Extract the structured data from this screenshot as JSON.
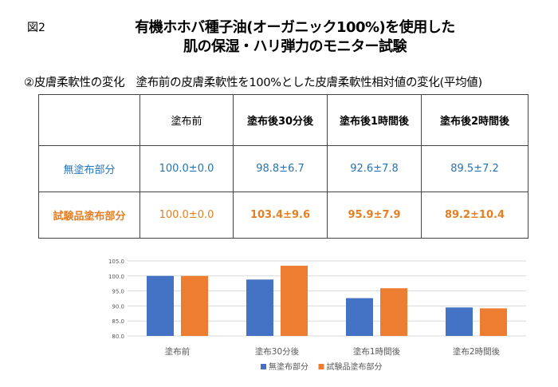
{
  "figure_label": "図2",
  "title_line1": "有機ホホバ種子油(オーガニック100%)を使用した",
  "title_line2": "肌の保湿・ハリ弾力のモニター試験",
  "subtitle": "②皮膚柔軟性の変化　塗布前の皮膚柔軟性を100%とした皮膚柔軟性相対値の変化(平均値)",
  "table": {
    "headers": [
      "",
      "塗布前",
      "塗布後30分後",
      "塗布後1時間後",
      "塗布後2時間後"
    ],
    "rows": [
      {
        "label": "無塗布部分",
        "cells": [
          "100.0±0.0",
          "98.8±6.7",
          "92.6±7.8",
          "89.5±7.2"
        ]
      },
      {
        "label": "試験品塗布部分",
        "cells": [
          "100.0±0.0",
          "103.4±9.6",
          "95.9±7.9",
          "89.2±10.4"
        ]
      }
    ]
  },
  "chart_data": {
    "type": "bar",
    "categories": [
      "塗布前",
      "塗布30分後",
      "塗布1時間後",
      "塗布2時間後"
    ],
    "series": [
      {
        "name": "無塗布部分",
        "values": [
          100.0,
          98.8,
          92.6,
          89.5
        ],
        "color": "#4472c4"
      },
      {
        "name": "試験品塗布部分",
        "values": [
          100.0,
          103.4,
          95.9,
          89.2
        ],
        "color": "#ed7d31"
      }
    ],
    "ylim": [
      80,
      105
    ],
    "yticks": [
      "80.0",
      "85.0",
      "90.0",
      "95.0",
      "100.0",
      "105.0"
    ],
    "grid": true,
    "legend": "bottom"
  }
}
